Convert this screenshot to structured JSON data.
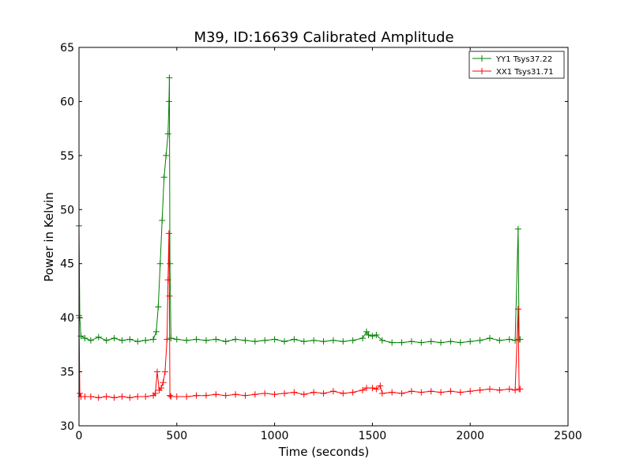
{
  "chart_data": {
    "type": "line",
    "title": "M39, ID:16639 Calibrated Amplitude",
    "xlabel": "Time (seconds)",
    "ylabel": "Power in Kelvin",
    "xlim": [
      0,
      2500
    ],
    "ylim": [
      30,
      65
    ],
    "xticks": [
      0,
      500,
      1000,
      1500,
      2000,
      2500
    ],
    "yticks": [
      30,
      35,
      40,
      45,
      50,
      55,
      60,
      65
    ],
    "grid": false,
    "legend_position": "top-right",
    "series": [
      {
        "name": "YY1 Tsys37.22",
        "color": "#008000",
        "marker": "+",
        "x": [
          0,
          4,
          10,
          30,
          60,
          100,
          140,
          180,
          220,
          260,
          300,
          340,
          380,
          395,
          405,
          415,
          425,
          435,
          445,
          455,
          460,
          462,
          465,
          470,
          500,
          550,
          600,
          650,
          700,
          750,
          800,
          850,
          900,
          950,
          1000,
          1050,
          1100,
          1150,
          1200,
          1250,
          1300,
          1350,
          1400,
          1450,
          1470,
          1480,
          1500,
          1520,
          1550,
          1600,
          1650,
          1700,
          1750,
          1800,
          1850,
          1900,
          1950,
          2000,
          2050,
          2100,
          2150,
          2200,
          2230,
          2245,
          2250,
          2255
        ],
        "y": [
          48.5,
          40.0,
          38.3,
          38.1,
          37.9,
          38.2,
          37.9,
          38.1,
          37.9,
          38.0,
          37.8,
          37.9,
          38.0,
          38.7,
          41.0,
          45.0,
          49.0,
          53.0,
          55.0,
          57.0,
          60.0,
          62.2,
          45.0,
          38.1,
          38.0,
          37.9,
          38.0,
          37.9,
          38.0,
          37.8,
          38.0,
          37.9,
          37.8,
          37.9,
          38.0,
          37.8,
          38.0,
          37.8,
          37.9,
          37.8,
          37.9,
          37.8,
          37.9,
          38.1,
          38.7,
          38.4,
          38.3,
          38.4,
          37.9,
          37.7,
          37.7,
          37.8,
          37.7,
          37.8,
          37.7,
          37.8,
          37.7,
          37.8,
          37.9,
          38.1,
          37.9,
          38.0,
          37.9,
          48.2,
          38.0,
          38.0
        ]
      },
      {
        "name": "XX1 Tsys31.71",
        "color": "#ff0000",
        "marker": "+",
        "x": [
          0,
          4,
          10,
          30,
          60,
          100,
          140,
          180,
          220,
          260,
          300,
          340,
          380,
          390,
          400,
          410,
          420,
          430,
          440,
          450,
          455,
          460,
          462,
          465,
          470,
          500,
          550,
          600,
          650,
          700,
          750,
          800,
          850,
          900,
          950,
          1000,
          1050,
          1100,
          1150,
          1200,
          1250,
          1300,
          1350,
          1400,
          1450,
          1470,
          1500,
          1520,
          1540,
          1550,
          1600,
          1650,
          1700,
          1750,
          1800,
          1850,
          1900,
          1950,
          2000,
          2050,
          2100,
          2150,
          2200,
          2230,
          2245,
          2250,
          2255
        ],
        "y": [
          40.2,
          33.0,
          32.7,
          32.7,
          32.7,
          32.6,
          32.7,
          32.6,
          32.7,
          32.6,
          32.7,
          32.7,
          32.8,
          33.0,
          35.0,
          33.3,
          33.5,
          34.0,
          35.0,
          38.0,
          43.5,
          47.8,
          42.0,
          32.8,
          32.7,
          32.7,
          32.7,
          32.8,
          32.8,
          32.9,
          32.8,
          32.9,
          32.8,
          32.9,
          33.0,
          32.9,
          33.0,
          33.1,
          32.9,
          33.1,
          33.0,
          33.2,
          33.0,
          33.1,
          33.3,
          33.5,
          33.5,
          33.4,
          33.7,
          33.0,
          33.1,
          33.0,
          33.2,
          33.1,
          33.2,
          33.1,
          33.2,
          33.1,
          33.2,
          33.3,
          33.4,
          33.3,
          33.4,
          33.3,
          40.8,
          33.4,
          33.4
        ]
      }
    ]
  }
}
